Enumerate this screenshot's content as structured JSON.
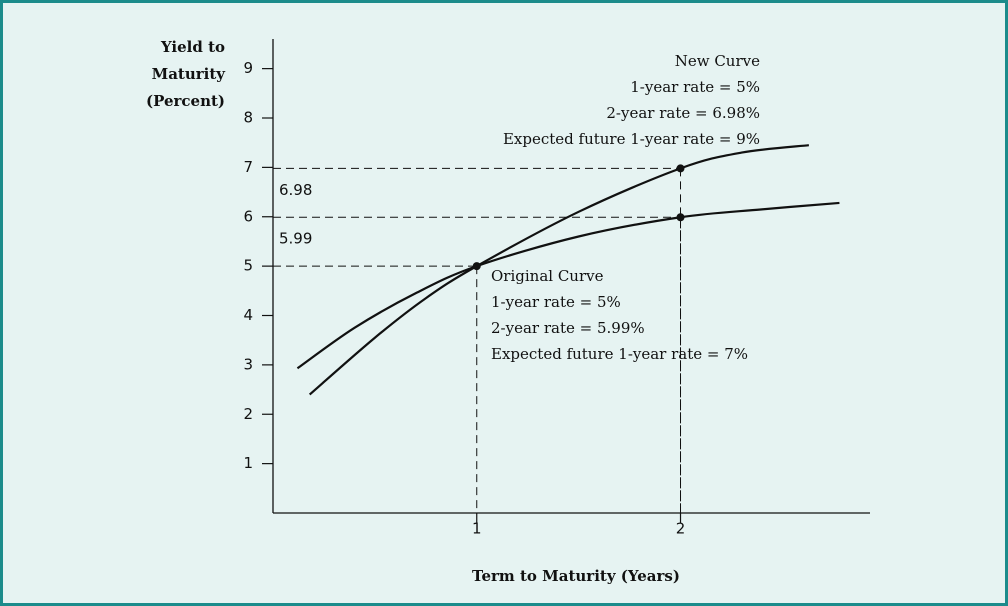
{
  "chart_data": {
    "type": "line",
    "y_axis_label": [
      "Yield to",
      "Maturity",
      "(Percent)"
    ],
    "x_axis_label": "Term to Maturity (Years)",
    "series": [
      {
        "name": "Original Curve",
        "color": "#111111",
        "x": [
          0.12,
          0.4,
          0.7,
          1,
          1.5,
          2,
          2.4,
          2.78
        ],
        "values": [
          2.93,
          3.75,
          4.45,
          5.0,
          5.6,
          5.99,
          6.15,
          6.28
        ]
      },
      {
        "name": "New Curve",
        "color": "#111111",
        "x": [
          0.18,
          0.5,
          0.75,
          1,
          1.5,
          2,
          2.3,
          2.63
        ],
        "values": [
          2.4,
          3.55,
          4.35,
          5.0,
          6.1,
          6.98,
          7.3,
          7.45
        ]
      }
    ],
    "points": [
      {
        "x": 1,
        "y": 5,
        "show_label": false
      },
      {
        "x": 2,
        "y": 5.99,
        "show_label": true
      },
      {
        "x": 2,
        "y": 6.98,
        "show_label": true
      }
    ],
    "annotations": [
      {
        "lines": [
          "New Curve",
          "1-year rate = 5%",
          "2-year rate = 6.98%",
          "Expected future 1-year rate = 9%"
        ],
        "align": "right"
      },
      {
        "lines": [
          "Original Curve",
          "1-year rate = 5%",
          "2-year rate = 5.99%",
          "Expected future 1-year rate = 7%"
        ],
        "align": "left"
      }
    ],
    "xlim": [
      0,
      2.93
    ],
    "ylim": [
      0,
      9.6
    ],
    "xticks": [
      1,
      2
    ],
    "yticks": [
      1,
      2,
      3,
      4,
      5,
      6,
      7,
      8,
      9
    ],
    "background": "#e6f3f2",
    "border_color": "#1b8b8b"
  }
}
